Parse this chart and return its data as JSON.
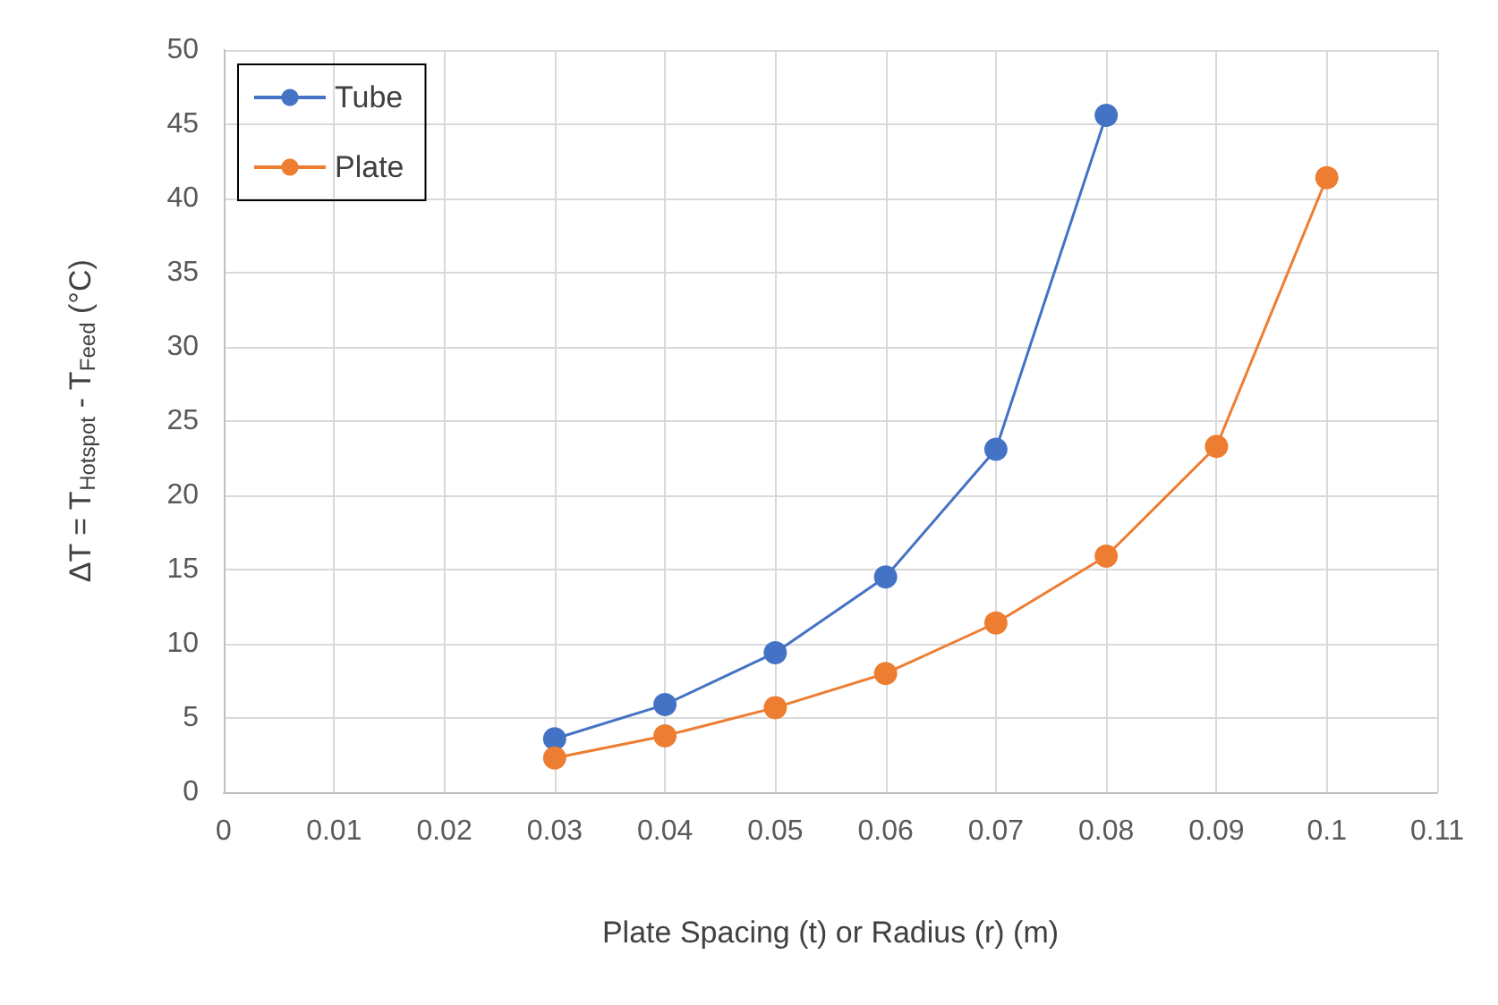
{
  "chart_data": {
    "type": "line",
    "xlabel": "Plate Spacing (t) or Radius (r) (m)",
    "ylabel": "ΔT = T$_{Hotspot}$ - T$_{Feed}$ (°C)",
    "xlim": [
      0,
      0.11
    ],
    "xticks": [
      0,
      0.01,
      0.02,
      0.03,
      0.04,
      0.05,
      0.06,
      0.07,
      0.08,
      0.09,
      0.1,
      0.11
    ],
    "ylim": [
      0,
      50
    ],
    "yticks": [
      0,
      5,
      10,
      15,
      20,
      25,
      30,
      35,
      40,
      45,
      50
    ],
    "grid": true,
    "legend": "top left",
    "marker": "circle",
    "line_style": "solid",
    "series": [
      {
        "name": "Tube",
        "color": "#4472c4",
        "x": [
          0.03,
          0.04,
          0.05,
          0.06,
          0.07,
          0.08
        ],
        "values": [
          3.6,
          5.9,
          9.4,
          14.5,
          23.1,
          45.6
        ]
      },
      {
        "name": "Plate",
        "color": "#ed7d31",
        "x": [
          0.03,
          0.04,
          0.05,
          0.06,
          0.07,
          0.08,
          0.09,
          0.1
        ],
        "values": [
          2.3,
          3.8,
          5.7,
          8.0,
          11.4,
          15.9,
          23.3,
          41.4
        ]
      }
    ]
  }
}
